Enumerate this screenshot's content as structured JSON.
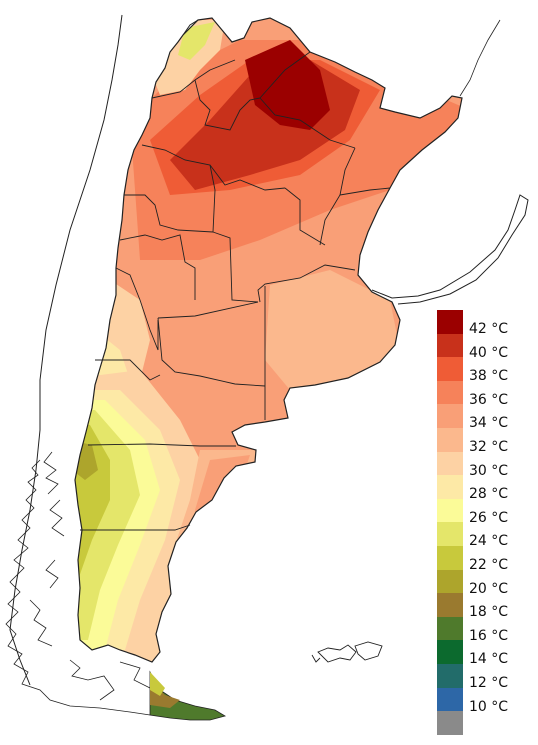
{
  "map": {
    "legend": {
      "bins": [
        {
          "label": "42 °C",
          "color": "#9b0000"
        },
        {
          "label": "40 °C",
          "color": "#c8311b"
        },
        {
          "label": "38 °C",
          "color": "#ef5c36"
        },
        {
          "label": "36 °C",
          "color": "#f6825a"
        },
        {
          "label": "34 °C",
          "color": "#f99f77"
        },
        {
          "label": "32 °C",
          "color": "#fbb88d"
        },
        {
          "label": "30 °C",
          "color": "#fdd2a4"
        },
        {
          "label": "28 °C",
          "color": "#fde9a6"
        },
        {
          "label": "26 °C",
          "color": "#fbfb98"
        },
        {
          "label": "24 °C",
          "color": "#e4e66a"
        },
        {
          "label": "22 °C",
          "color": "#c8c93c"
        },
        {
          "label": "20 °C",
          "color": "#ada52c"
        },
        {
          "label": "18 °C",
          "color": "#9a7a2f"
        },
        {
          "label": "16 °C",
          "color": "#4f7a2c"
        },
        {
          "label": "14 °C",
          "color": "#0c6a2e"
        },
        {
          "label": "12 °C",
          "color": "#226c6a"
        },
        {
          "label": "10 °C",
          "color": "#2d67a7"
        },
        {
          "label": "",
          "color": "#8a8a8a"
        }
      ]
    }
  }
}
